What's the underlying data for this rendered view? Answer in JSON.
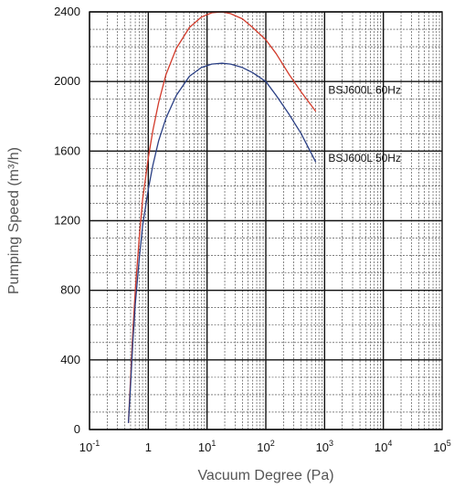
{
  "chart_data": {
    "type": "line",
    "xlabel": "Vacuum Degree (Pa)",
    "ylabel": "Pumping Speed (m³/h)",
    "xscale": "log",
    "xlim": [
      0.1,
      100000
    ],
    "ylim": [
      0,
      2400
    ],
    "grid": true,
    "x_tick_labels": [
      {
        "base": "10",
        "exp": "-1"
      },
      {
        "base": "1",
        "exp": ""
      },
      {
        "base": "10",
        "exp": "1"
      },
      {
        "base": "10",
        "exp": "2"
      },
      {
        "base": "10",
        "exp": "3"
      },
      {
        "base": "10",
        "exp": "4"
      },
      {
        "base": "10",
        "exp": "5"
      }
    ],
    "y_ticks": [
      0,
      400,
      800,
      1200,
      1600,
      2000,
      2400
    ],
    "series": [
      {
        "name": "BSJ600L 60Hz",
        "color": "#d23a2a",
        "x": [
          0.46,
          0.5,
          0.55,
          0.6,
          0.7,
          0.8,
          1,
          1.2,
          1.5,
          2,
          3,
          5,
          8,
          12,
          18,
          25,
          40,
          60,
          100,
          150,
          250,
          400,
          700
        ],
        "y": [
          40,
          300,
          580,
          800,
          1100,
          1320,
          1560,
          1720,
          1880,
          2040,
          2190,
          2310,
          2370,
          2395,
          2400,
          2390,
          2360,
          2310,
          2240,
          2160,
          2040,
          1940,
          1830
        ]
      },
      {
        "name": "BSJ600L 50Hz",
        "color": "#2a3f84",
        "x": [
          0.46,
          0.5,
          0.55,
          0.6,
          0.7,
          0.8,
          1,
          1.2,
          1.5,
          2,
          3,
          5,
          8,
          12,
          18,
          25,
          40,
          60,
          100,
          150,
          250,
          400,
          700
        ],
        "y": [
          40,
          260,
          520,
          720,
          980,
          1170,
          1380,
          1520,
          1660,
          1790,
          1920,
          2030,
          2080,
          2100,
          2105,
          2100,
          2080,
          2050,
          2000,
          1920,
          1810,
          1700,
          1540
        ]
      }
    ]
  }
}
